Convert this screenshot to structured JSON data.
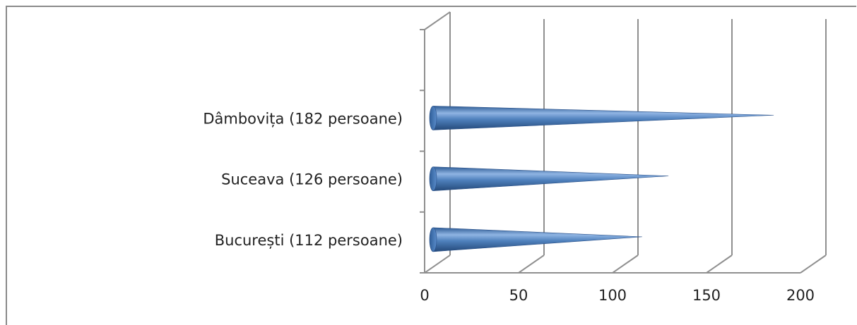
{
  "chart_data": {
    "type": "bar",
    "orientation": "horizontal",
    "style": "3d-cone",
    "categories": [
      "București   (112 persoane)",
      "Suceava   (126 persoane)",
      "Dâmbovița  (182 persoane)"
    ],
    "values": [
      112,
      126,
      182
    ],
    "slots": 4,
    "xlim": [
      0,
      200
    ],
    "xticks": [
      0,
      50,
      100,
      150,
      200
    ],
    "tick_labels": [
      "0",
      "50",
      "100",
      "150",
      "200"
    ],
    "grid": true,
    "legend": "none",
    "title": "",
    "xlabel": "",
    "ylabel": "",
    "colors": {
      "bar_light": "#8fb4e3",
      "bar_mid": "#4f81bd",
      "bar_dark": "#2c5a93",
      "grid": "#8f8f8f"
    }
  }
}
